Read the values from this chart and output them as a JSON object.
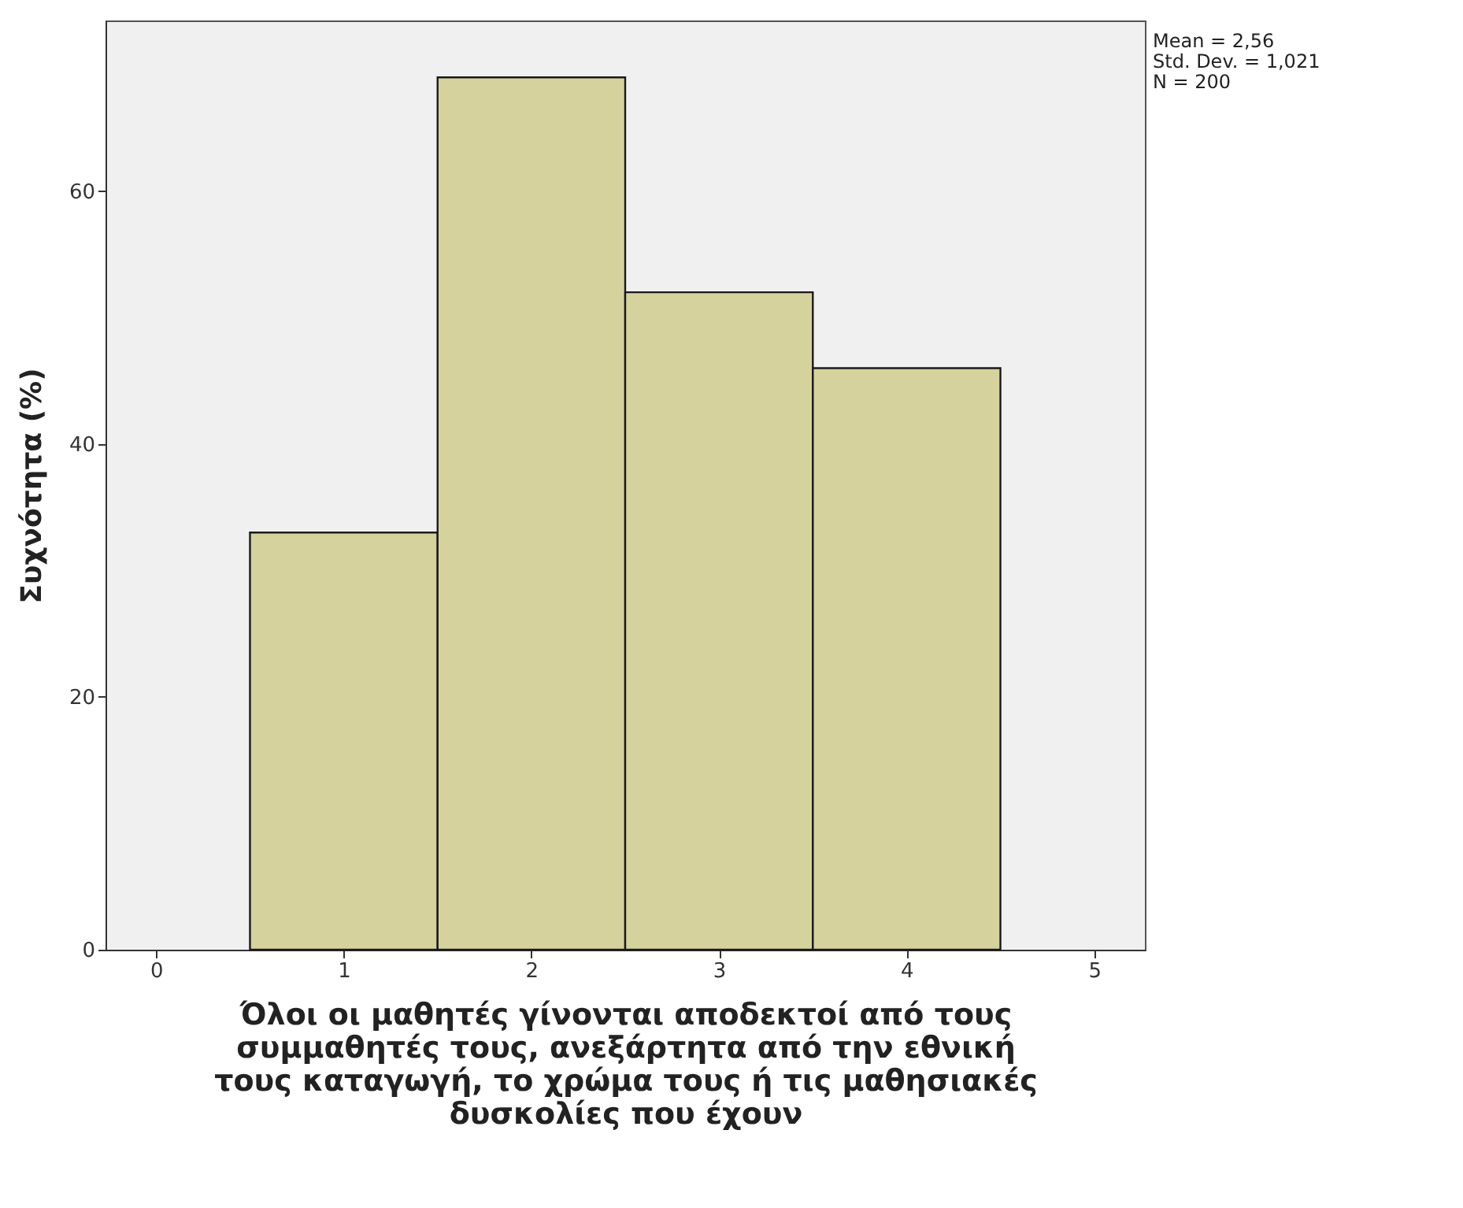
{
  "chart_data": {
    "type": "histogram",
    "xlabel": "Όλοι οι μαθητές γίνονται αποδεκτοί από τους συμμαθητές τους, ανεξάρτητα από την εθνική τους καταγωγή, το χρώμα τους ή τις μαθησιακές δυσκολίες που έχουν",
    "ylabel": "Συχνότητα (%)",
    "bins": [
      0.5,
      1.5,
      2.5,
      3.5,
      4.5
    ],
    "values": [
      33,
      69,
      52,
      46
    ],
    "color": "#d6d29e",
    "xlim": [
      -0.27,
      5.27
    ],
    "xticks": [
      0,
      1,
      2,
      3,
      4,
      5
    ],
    "ylim": [
      0,
      73.5
    ],
    "yticks": [
      0,
      20,
      40,
      60
    ],
    "grid": false,
    "annotations": [
      "Mean = 2,56",
      "Std. Dev. = 1,021",
      "N = 200"
    ]
  }
}
